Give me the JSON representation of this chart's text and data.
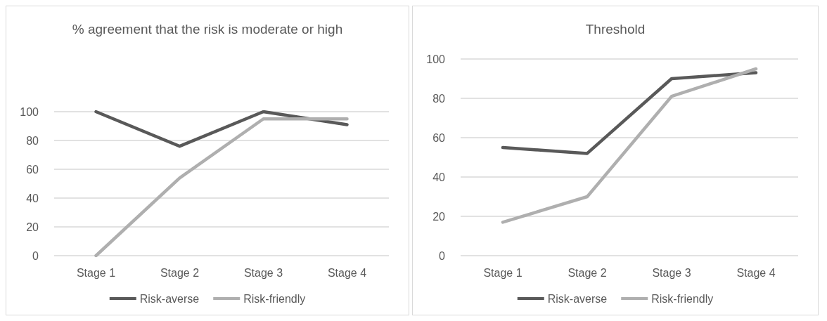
{
  "chart_data": [
    {
      "type": "line",
      "title": "% agreement that the risk is moderate or high",
      "categories": [
        "Stage 1",
        "Stage 2",
        "Stage 3",
        "Stage 4"
      ],
      "series": [
        {
          "name": "Risk-averse",
          "color": "#595959",
          "values": [
            100,
            76,
            100,
            91
          ]
        },
        {
          "name": "Risk-friendly",
          "color": "#afafaf",
          "values": [
            0,
            54,
            95,
            95
          ]
        }
      ],
      "ylim": [
        0,
        100
      ],
      "yticks": [
        0,
        20,
        40,
        60,
        80,
        100
      ],
      "grid": "y",
      "legend": "bottom",
      "marker": "none",
      "line_style": "solid"
    },
    {
      "type": "line",
      "title": "Threshold",
      "categories": [
        "Stage 1",
        "Stage 2",
        "Stage 3",
        "Stage 4"
      ],
      "series": [
        {
          "name": "Risk-averse",
          "color": "#595959",
          "values": [
            55,
            52,
            90,
            93
          ]
        },
        {
          "name": "Risk-friendly",
          "color": "#afafaf",
          "values": [
            17,
            30,
            81,
            95
          ]
        }
      ],
      "ylim": [
        0,
        100
      ],
      "yticks": [
        0,
        20,
        40,
        60,
        80,
        100
      ],
      "grid": "y",
      "legend": "bottom",
      "marker": "none",
      "line_style": "solid"
    }
  ]
}
